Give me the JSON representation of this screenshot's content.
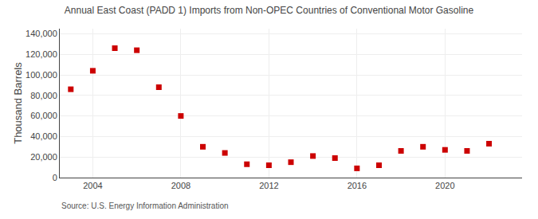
{
  "chart_data": {
    "type": "scatter",
    "title": "Annual East Coast (PADD 1) Imports from Non-OPEC Countries of Conventional Motor Gasoline",
    "ylabel": "Thousand Barrels",
    "annotations": [
      "Source: U.S. Energy Information Administration"
    ],
    "x": [
      2003,
      2004,
      2005,
      2006,
      2007,
      2008,
      2009,
      2010,
      2011,
      2012,
      2013,
      2014,
      2015,
      2016,
      2017,
      2018,
      2019,
      2020,
      2021,
      2022
    ],
    "values": [
      86000,
      104000,
      126000,
      124000,
      88000,
      60000,
      30000,
      24000,
      13000,
      12000,
      15000,
      21000,
      19000,
      9000,
      12000,
      26000,
      30000,
      27000,
      26000,
      33000
    ],
    "color": "#cc0000",
    "marker": "square",
    "xlim": [
      2002.5,
      2023.5
    ],
    "xticks": [
      2004,
      2008,
      2012,
      2016,
      2020
    ],
    "ylim": [
      0,
      145000
    ],
    "yticks": [
      0,
      {
        "value": 20000,
        "label": "20,000"
      },
      {
        "value": 40000,
        "label": "40,000"
      },
      {
        "value": 60000,
        "label": "60,000"
      },
      {
        "value": 80000,
        "label": "80,000"
      },
      {
        "value": 100000,
        "label": "100,000"
      },
      {
        "value": 120000,
        "label": "120,000"
      },
      {
        "value": 140000,
        "label": "140,000"
      }
    ],
    "grid": true
  }
}
